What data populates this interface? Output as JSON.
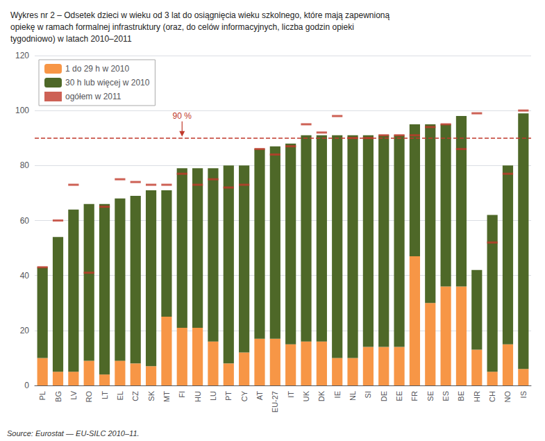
{
  "chart_data": {
    "type": "bar",
    "title": "Wykres nr 2 – Odsetek dzieci w wieku od 3 lat do osiągnięcia wieku szkolnego, które mają zapewnioną\nopiekę w ramach formalnej infrastruktury (oraz, do celów informacyjnych, liczba godzin opieki\ntygodniowo) w latach 2010–2011",
    "source": "Source: Eurostat — EU-SILC 2010–11.",
    "categories": [
      "PL",
      "BG",
      "LV",
      "RO",
      "LT",
      "EL",
      "CZ",
      "SK",
      "MT",
      "FI",
      "HU",
      "LU",
      "PT",
      "CY",
      "AT",
      "EU-27",
      "IT",
      "UK",
      "DK",
      "IE",
      "NL",
      "SI",
      "DE",
      "EE",
      "FR",
      "SE",
      "ES",
      "BE",
      "HR",
      "CH",
      "NO",
      "IS"
    ],
    "series": [
      {
        "name": "1 do 29 h w 2010",
        "type": "bar",
        "color": "#F79646",
        "values": [
          10,
          5,
          5,
          9,
          4,
          9,
          8,
          7,
          25,
          21,
          21,
          16,
          8,
          12,
          17,
          17,
          15,
          16,
          16,
          10,
          10,
          14,
          14,
          14,
          47,
          30,
          36,
          36,
          13,
          5,
          15,
          6
        ]
      },
      {
        "name": "30 h lub więcej w 2010",
        "type": "bar",
        "color": "#4E6828",
        "values": [
          33,
          49,
          59,
          57,
          62,
          59,
          61,
          64,
          46,
          58,
          58,
          63,
          72,
          68,
          69,
          70,
          73,
          75,
          75,
          81,
          81,
          77,
          77,
          77,
          48,
          65,
          59,
          62,
          29,
          57,
          65,
          93
        ]
      },
      {
        "name": "ogółem w 2011",
        "type": "scatter",
        "marker": "hline",
        "color": "#C0392B",
        "values": [
          43,
          60,
          73,
          41,
          65,
          75,
          74,
          73,
          73,
          77,
          73,
          75,
          72,
          73,
          86,
          84,
          87,
          95,
          92,
          98,
          90,
          90,
          91,
          91,
          91,
          94,
          95,
          86,
          99,
          52,
          77,
          100
        ]
      }
    ],
    "stacked": true,
    "ylim": [
      0,
      120
    ],
    "yticks": [
      0,
      20,
      40,
      60,
      80,
      100,
      120
    ],
    "grid": true,
    "legend": "upper left",
    "hlines": [
      {
        "y": 90,
        "color": "#C0392B",
        "line_style": "dashed"
      }
    ],
    "annotations": [
      {
        "text": "90 %",
        "x": "FI",
        "y": 90,
        "color": "#C0392B"
      }
    ]
  }
}
